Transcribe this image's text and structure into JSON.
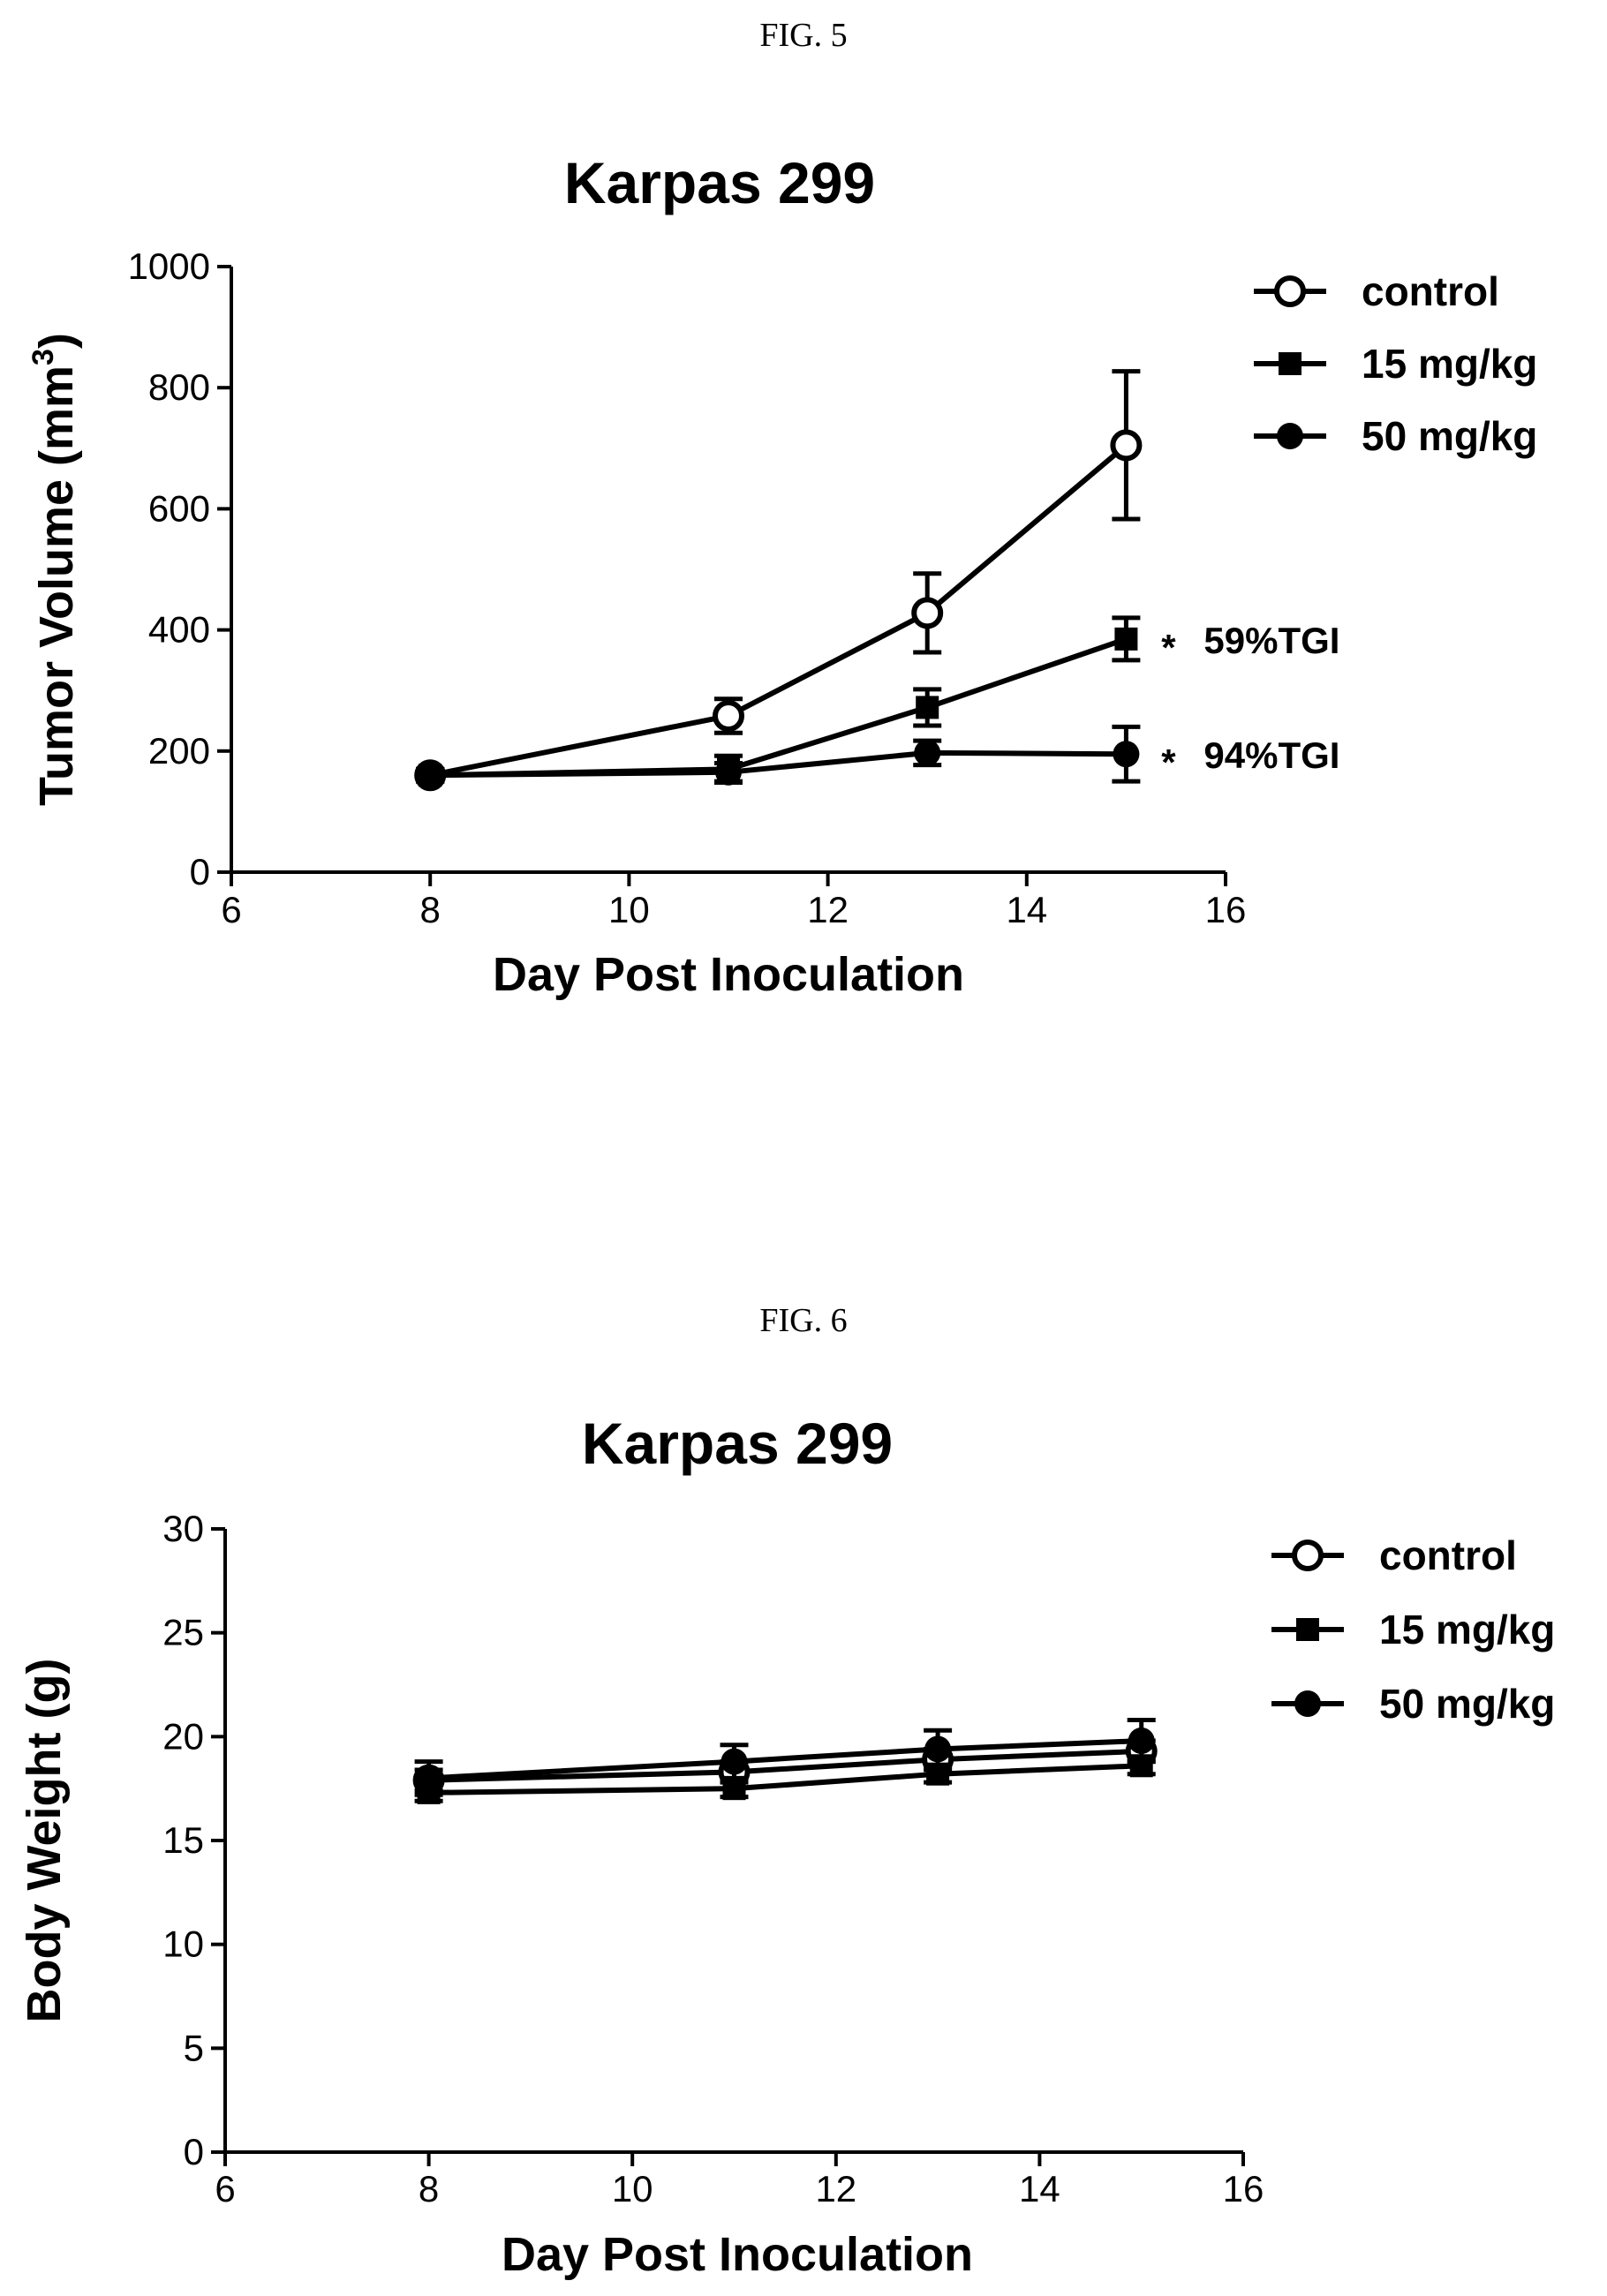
{
  "figures": [
    {
      "caption": "FIG. 5"
    },
    {
      "caption": "FIG. 6"
    }
  ],
  "chart_data": [
    {
      "type": "line",
      "title": "Karpas 299",
      "xlabel": "Day Post Inoculation",
      "ylabel": "Tumor Volume (mm",
      "ylabel_sup": "3",
      "ylabel_close": ")",
      "xlim": [
        6,
        16
      ],
      "ylim": [
        0,
        1000
      ],
      "xticks": [
        6,
        8,
        10,
        12,
        14,
        16
      ],
      "yticks": [
        0,
        200,
        400,
        600,
        800,
        1000
      ],
      "legend_position": "top-right",
      "series": [
        {
          "name": "control",
          "marker": "open-circle",
          "x": [
            8,
            11,
            13,
            15
          ],
          "y": [
            160,
            258,
            428,
            705
          ],
          "error": [
            10,
            28,
            65,
            122
          ]
        },
        {
          "name": "15 mg/kg",
          "marker": "filled-square",
          "x": [
            8,
            11,
            13,
            15
          ],
          "y": [
            160,
            170,
            272,
            385
          ],
          "error": [
            10,
            22,
            30,
            35
          ]
        },
        {
          "name": "50 mg/kg",
          "marker": "filled-circle",
          "x": [
            8,
            11,
            13,
            15
          ],
          "y": [
            160,
            165,
            197,
            195
          ],
          "error": [
            10,
            15,
            20,
            45
          ]
        }
      ],
      "annotations": [
        {
          "text": "*",
          "series": "15 mg/kg",
          "label": "59%TGI"
        },
        {
          "text": "*",
          "series": "50 mg/kg",
          "label": "94%TGI"
        }
      ]
    },
    {
      "type": "line",
      "title": "Karpas 299",
      "xlabel": "Day Post Inoculation",
      "ylabel": "Body Weight (g)",
      "xlim": [
        6,
        16
      ],
      "ylim": [
        0,
        30
      ],
      "xticks": [
        6,
        8,
        10,
        12,
        14,
        16
      ],
      "yticks": [
        0,
        5,
        10,
        15,
        20,
        25,
        30
      ],
      "legend_position": "top-right",
      "series": [
        {
          "name": "control",
          "marker": "open-circle",
          "x": [
            8,
            11,
            13,
            15
          ],
          "y": [
            17.9,
            18.3,
            18.9,
            19.3
          ],
          "error": [
            0.5,
            0.5,
            0.5,
            0.5
          ]
        },
        {
          "name": "15 mg/kg",
          "marker": "filled-square",
          "x": [
            8,
            11,
            13,
            15
          ],
          "y": [
            17.3,
            17.5,
            18.2,
            18.6
          ],
          "error": [
            0.4,
            0.4,
            0.4,
            0.4
          ]
        },
        {
          "name": "50 mg/kg",
          "marker": "filled-circle",
          "x": [
            8,
            11,
            13,
            15
          ],
          "y": [
            18.0,
            18.8,
            19.4,
            19.8
          ],
          "error": [
            0.8,
            0.8,
            0.9,
            1.0
          ]
        }
      ]
    }
  ]
}
